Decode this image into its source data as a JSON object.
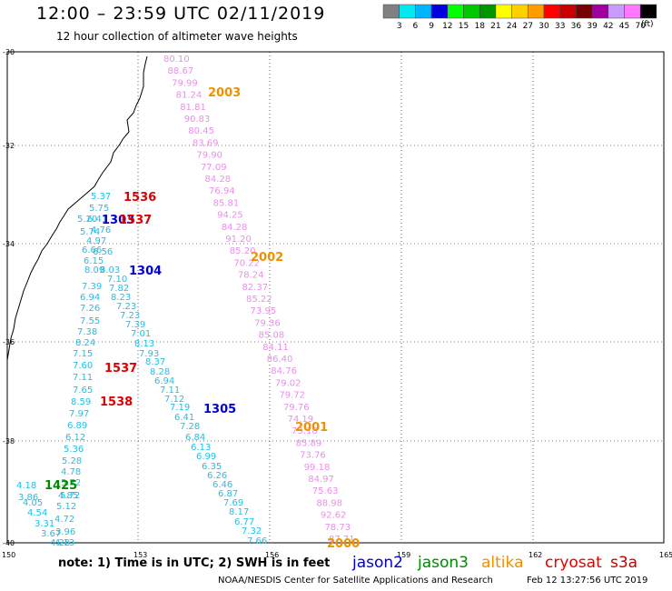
{
  "header": {
    "title": "12:00 – 23:59 UTC 02/11/2019",
    "subtitle": "12 hour collection of altimeter wave heights"
  },
  "legend": {
    "units": "(ft)",
    "colors": [
      "#808080",
      "#00e8f0",
      "#00b4ff",
      "#0000e0",
      "#00ff00",
      "#00c800",
      "#009600",
      "#ffff00",
      "#ffd000",
      "#ff9c00",
      "#ff0000",
      "#c80000",
      "#780000",
      "#a000a0",
      "#c89cff",
      "#ff78ff",
      "#000000"
    ],
    "labels": [
      "3",
      "6",
      "9",
      "12",
      "15",
      "18",
      "21",
      "24",
      "27",
      "30",
      "33",
      "36",
      "39",
      "42",
      "45",
      "70"
    ]
  },
  "axes": {
    "lat_labels": [
      "-30",
      "-32",
      "-34",
      "-36",
      "-38",
      "-40"
    ],
    "lon_labels": [
      "150",
      "153",
      "156",
      "159",
      "162",
      "165"
    ]
  },
  "satellite_colors": {
    "jason2": "#0000d0",
    "jason3": "#008800",
    "altika": "#f09000",
    "cryosat": "#e00000",
    "s3a": "#c00000",
    "cyan": "#20c0e8",
    "pink": "#e890e8"
  },
  "tracks": {
    "pink": [
      "80.10",
      "88.67",
      "79.99",
      "81.24",
      "81.81",
      "90.83",
      "80.45",
      "83.69",
      "79.90",
      "77.09",
      "84.28",
      "76.94",
      "85.81",
      "94.25",
      "84.28",
      "91.20",
      "85.20",
      "70.22",
      "78.24",
      "82.37",
      "85.22",
      "73.95",
      "79.36",
      "85.08",
      "84.11",
      "86.40",
      "84.76",
      "79.02",
      "79.72",
      "79.76",
      "74.19",
      "73.18",
      "85.89",
      "73.76",
      "99.18",
      "84.97",
      "75.63",
      "88.98",
      "92.62",
      "78.73",
      "87.71"
    ],
    "cyan_left": [
      "5.37",
      "5.75",
      "5.20",
      "6.41",
      "4.76",
      "5.74",
      "4.97",
      "6.66",
      "6.56",
      "6.15",
      "8.03",
      "8.09",
      "7.10",
      "7.39",
      "7.82",
      "6.94",
      "8.23",
      "7.26",
      "7.23",
      "7.55",
      "7.23",
      "7.39",
      "7.38",
      "7.01",
      "8.24",
      "8.13",
      "7.15",
      "7.93",
      "7.60",
      "8.37",
      "7.11",
      "8.28",
      "7.65",
      "6.94",
      "8.59",
      "7.11",
      "7.97",
      "7.12",
      "6.89",
      "7.19",
      "6.12",
      "6.41",
      "5.36",
      "7.28",
      "5.28",
      "6.84",
      "4.78",
      "6.13",
      "5.72",
      "6.99",
      "5.72",
      "6.35",
      "4.18",
      "4.85",
      "6.26",
      "3.86",
      "5.12",
      "6.46",
      "4.05",
      "4.72",
      "6.87",
      "4.54",
      "3.96",
      "7.69",
      "3.31",
      "4.13",
      "8.17",
      "3.67",
      "4.28",
      "6.77",
      "7.32",
      "7.66"
    ],
    "time_labels": [
      {
        "text": "1536",
        "sat": "cryosat"
      },
      {
        "text": "1303",
        "sat": "jason2"
      },
      {
        "text": "1537",
        "sat": "cryosat"
      },
      {
        "text": "1304",
        "sat": "jason2"
      },
      {
        "text": "2003",
        "sat": "altika"
      },
      {
        "text": "2002",
        "sat": "altika"
      },
      {
        "text": "1537",
        "sat": "cryosat"
      },
      {
        "text": "1538",
        "sat": "cryosat"
      },
      {
        "text": "1305",
        "sat": "jason2"
      },
      {
        "text": "2001",
        "sat": "altika"
      },
      {
        "text": "1425",
        "sat": "jason3"
      },
      {
        "text": "2000",
        "sat": "altika"
      }
    ]
  },
  "footer": {
    "note": "note: 1) Time is in UTC; 2) SWH is in feet",
    "sat_jason2": "jason2",
    "sat_jason3": "jason3",
    "sat_altika": "altika",
    "sat_cryosat": "cryosat",
    "sat_s3a": "s3a",
    "credit": "NOAA/NESDIS Center for Satellite Applications and Research",
    "timestamp": "Feb 12 13:27:56 UTC 2019"
  }
}
